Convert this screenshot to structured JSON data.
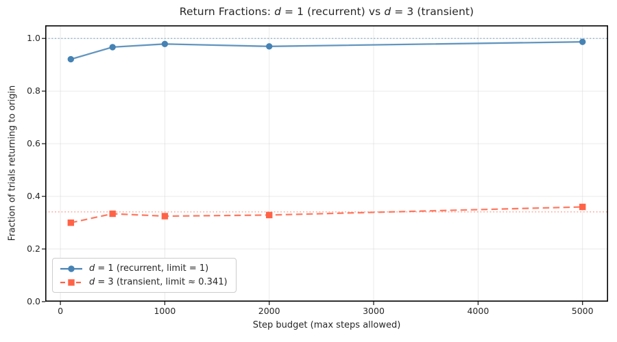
{
  "chart_data": {
    "type": "line",
    "title": "Return Fractions: d = 1 (recurrent) vs d = 3 (transient)",
    "xlabel": "Step budget (max steps allowed)",
    "ylabel": "Fraction of trials returning to origin",
    "x_ticks": [
      0,
      1000,
      2000,
      3000,
      4000,
      5000
    ],
    "y_ticks": [
      0.0,
      0.2,
      0.4,
      0.6,
      0.8,
      1.0
    ],
    "y_tick_labels": [
      "0.0",
      "0.2",
      "0.4",
      "0.6",
      "0.8",
      "1.0"
    ],
    "xlim": [
      -145,
      5245
    ],
    "ylim": [
      0,
      1.05
    ],
    "grid": true,
    "legend_position": "lower left",
    "x": [
      100,
      500,
      1000,
      2000,
      5000
    ],
    "series": [
      {
        "name": "d = 1 (recurrent, limit = 1)",
        "values": [
          0.921,
          0.967,
          0.979,
          0.97,
          0.987
        ],
        "color": "#4682b4",
        "marker": "circle",
        "line_style": "solid"
      },
      {
        "name": "d = 3 (transient, limit ≈ 0.341)",
        "values": [
          0.3,
          0.334,
          0.325,
          0.329,
          0.36
        ],
        "color": "#ff6347",
        "marker": "square",
        "line_style": "dashed"
      }
    ],
    "reference_lines": [
      {
        "y": 1.0,
        "color": "#4682b4",
        "style": "dotted"
      },
      {
        "y": 0.341,
        "color": "#ff6347",
        "style": "dotted"
      }
    ],
    "colors": {
      "background": "#ffffff",
      "grid": "#cfcfcf",
      "frame": "#000000",
      "text": "#262626"
    }
  }
}
